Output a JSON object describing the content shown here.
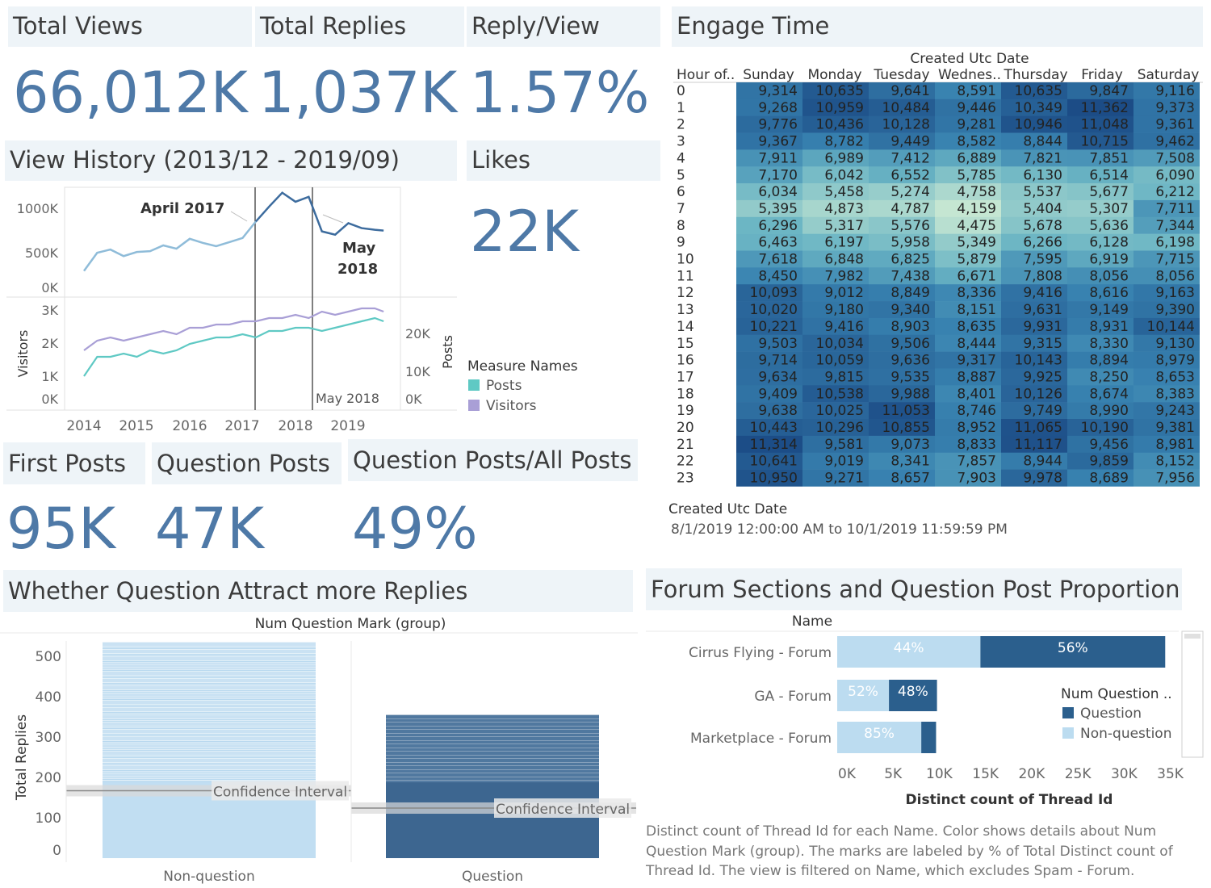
{
  "kpis": {
    "total_views": {
      "title": "Total Views",
      "value": "66,012K"
    },
    "total_replies": {
      "title": "Total Replies",
      "value": "1,037K"
    },
    "reply_view": {
      "title": "Reply/View",
      "value": "1.57%"
    },
    "likes": {
      "title": "Likes",
      "value": "22K"
    },
    "first_posts": {
      "title": "First Posts",
      "value": "95K"
    },
    "question_posts": {
      "title": "Question Posts",
      "value": "47K"
    },
    "question_ratio": {
      "title": "Question Posts/All Posts",
      "value": "49%"
    }
  },
  "view_history": {
    "title": "View History (2013/12 - 2019/09)",
    "annotations": {
      "april_2017": "April 2017",
      "may_2018_a": "May",
      "may_2018_b": "2018",
      "may_2018_bottom": "May 2018"
    },
    "top_ticks": [
      "1000K",
      "500K",
      "0K"
    ],
    "left_ticks": [
      "3K",
      "2K",
      "1K",
      "0K"
    ],
    "right_ticks": [
      "20K",
      "10K",
      "0K"
    ],
    "left_axis": "Visitors",
    "right_axis": "Posts",
    "years": [
      "2014",
      "2015",
      "2016",
      "2017",
      "2018",
      "2019"
    ],
    "legend_title": "Measure Names",
    "legend": [
      {
        "name": "Posts",
        "color": "#5fc9c4"
      },
      {
        "name": "Visitors",
        "color": "#a99fd6"
      }
    ]
  },
  "engage": {
    "title": "Engage Time",
    "col_title": "Created Utc Date",
    "row_title": "Hour of..",
    "days": [
      "Sunday",
      "Monday",
      "Tuesday",
      "Wednes..",
      "Thursday",
      "Friday",
      "Saturday"
    ],
    "filter_title": "Created Utc Date",
    "filter_value": "8/1/2019 12:00:00 AM to 10/1/2019 11:59:59 PM"
  },
  "replies": {
    "title": "Whether Question Attract more Replies",
    "col_title": "Num Question Mark (group)",
    "y_axis": "Total Replies",
    "y_ticks": [
      "500",
      "400",
      "300",
      "200",
      "100",
      "0"
    ],
    "ci_label": "Confidence Interval",
    "categories": [
      "Non-question",
      "Question"
    ]
  },
  "forum": {
    "title": "Forum Sections and Question Post Proportion",
    "row_title": "Name",
    "x_axis": "Distinct count of Thread Id",
    "x_ticks": [
      "0K",
      "5K",
      "10K",
      "15K",
      "20K",
      "25K",
      "30K",
      "35K"
    ],
    "legend_title": "Num Question ..",
    "legend": [
      {
        "name": "Question",
        "color": "#2b5f8d"
      },
      {
        "name": "Non-question",
        "color": "#bcdcf0"
      }
    ],
    "caption": [
      "Distinct count of Thread Id for each Name.  Color shows details about Num",
      "Question Mark (group).  The marks are labeled by % of Total Distinct count of",
      "Thread Id. The view is filtered on Name, which excludes Spam - Forum."
    ]
  },
  "chart_data": [
    {
      "type": "line",
      "title": "View History (2013/12 - 2019/09)",
      "x": [
        "2014-01",
        "2014-04",
        "2014-07",
        "2014-10",
        "2015-01",
        "2015-04",
        "2015-07",
        "2015-10",
        "2016-01",
        "2016-04",
        "2016-07",
        "2016-10",
        "2017-01",
        "2017-04",
        "2017-07",
        "2017-10",
        "2018-01",
        "2018-04",
        "2018-07",
        "2018-10",
        "2019-01",
        "2019-04",
        "2019-07",
        "2019-09"
      ],
      "series": [
        {
          "name": "Views",
          "values": [
            200,
            420,
            460,
            380,
            430,
            440,
            510,
            470,
            590,
            540,
            500,
            550,
            600,
            800,
            980,
            1150,
            1040,
            1100,
            680,
            640,
            780,
            720,
            700,
            690
          ]
        }
      ],
      "ylim": [
        0,
        1200
      ]
    },
    {
      "type": "line",
      "x": [
        "2014-01",
        "2014-04",
        "2014-07",
        "2014-10",
        "2015-01",
        "2015-04",
        "2015-07",
        "2015-10",
        "2016-01",
        "2016-04",
        "2016-07",
        "2016-10",
        "2017-01",
        "2017-04",
        "2017-07",
        "2017-10",
        "2018-01",
        "2018-04",
        "2018-07",
        "2018-10",
        "2019-01",
        "2019-04",
        "2019-07",
        "2019-09"
      ],
      "series": [
        {
          "name": "Posts",
          "values": [
            7,
            13,
            13,
            14,
            13,
            15,
            14,
            15,
            17,
            18,
            19,
            19,
            20,
            19,
            21,
            21,
            22,
            22,
            21,
            22,
            23,
            24,
            25,
            24
          ]
        },
        {
          "name": "Visitors",
          "values": [
            1.5,
            1.8,
            1.9,
            1.8,
            1.9,
            2.0,
            2.1,
            2.0,
            2.2,
            2.2,
            2.3,
            2.3,
            2.4,
            2.4,
            2.5,
            2.5,
            2.6,
            2.5,
            2.7,
            2.6,
            2.7,
            2.8,
            2.8,
            2.7
          ]
        }
      ],
      "ylabel": "Visitors",
      "ylim": [
        0,
        3.3
      ]
    },
    {
      "type": "heatmap",
      "title": "Engage Time",
      "x": [
        "Sunday",
        "Monday",
        "Tuesday",
        "Wednes..",
        "Thursday",
        "Friday",
        "Saturday"
      ],
      "y": [
        "0",
        "1",
        "2",
        "3",
        "4",
        "5",
        "6",
        "7",
        "8",
        "9",
        "10",
        "11",
        "12",
        "13",
        "14",
        "15",
        "16",
        "17",
        "18",
        "19",
        "20",
        "21",
        "22",
        "23"
      ],
      "values": [
        [
          9314,
          10635,
          9641,
          8591,
          10635,
          9847,
          9116
        ],
        [
          9268,
          10959,
          10484,
          9446,
          10349,
          11362,
          9373
        ],
        [
          9776,
          10436,
          10128,
          9281,
          10946,
          11048,
          9361
        ],
        [
          9367,
          8782,
          9449,
          8582,
          8844,
          10715,
          9462
        ],
        [
          7911,
          6989,
          7412,
          6889,
          7821,
          7851,
          7508
        ],
        [
          7170,
          6042,
          6552,
          5785,
          6130,
          6514,
          6090
        ],
        [
          6034,
          5458,
          5274,
          4758,
          5537,
          5677,
          6212
        ],
        [
          5395,
          4873,
          4787,
          4159,
          5404,
          5307,
          7711
        ],
        [
          6296,
          5317,
          5576,
          4475,
          5678,
          5636,
          7344
        ],
        [
          6463,
          6197,
          5958,
          5349,
          6266,
          6128,
          6198
        ],
        [
          7618,
          6848,
          6825,
          5879,
          7595,
          6919,
          7715
        ],
        [
          8450,
          7982,
          7438,
          6671,
          7808,
          8056,
          8056
        ],
        [
          10093,
          9012,
          8849,
          8336,
          9416,
          8616,
          9163
        ],
        [
          10020,
          9180,
          9340,
          8151,
          9631,
          9149,
          9390
        ],
        [
          10221,
          9416,
          8903,
          8635,
          9931,
          8931,
          10144
        ],
        [
          9503,
          10034,
          9506,
          8444,
          9315,
          8330,
          9130
        ],
        [
          9714,
          10059,
          9636,
          9317,
          10143,
          8894,
          8979
        ],
        [
          9634,
          9815,
          9535,
          8887,
          9925,
          8250,
          8653
        ],
        [
          9409,
          10538,
          9988,
          8401,
          10126,
          8674,
          8383
        ],
        [
          9638,
          10025,
          11053,
          8746,
          9749,
          8990,
          9243
        ],
        [
          10443,
          10296,
          10855,
          8952,
          11065,
          10190,
          9381
        ],
        [
          11314,
          9581,
          9073,
          8833,
          11117,
          9456,
          8981
        ],
        [
          10641,
          9019,
          8341,
          7857,
          8944,
          9859,
          8152
        ],
        [
          10950,
          9271,
          8657,
          7903,
          9978,
          8689,
          7956
        ]
      ]
    },
    {
      "type": "bar",
      "title": "Whether Question Attract more Replies",
      "categories": [
        "Non-question",
        "Question"
      ],
      "values": [
        536,
        356
      ],
      "ci_center": [
        167,
        124
      ],
      "ylabel": "Total Replies",
      "ylim": [
        0,
        540
      ]
    },
    {
      "type": "bar",
      "orientation": "horizontal",
      "title": "Forum Sections and Question Post Proportion",
      "categories": [
        "Cirrus Flying - Forum",
        "GA - Forum",
        "Marketplace - Forum"
      ],
      "series": [
        {
          "name": "Non-question",
          "values": [
            15500,
            5600,
            9100
          ],
          "labels": [
            "44%",
            "52%",
            "85%"
          ]
        },
        {
          "name": "Question",
          "values": [
            20000,
            5200,
            1600
          ],
          "labels": [
            "56%",
            "48%",
            ""
          ]
        }
      ],
      "xlabel": "Distinct count of Thread Id",
      "xlim": [
        0,
        35000
      ]
    }
  ]
}
